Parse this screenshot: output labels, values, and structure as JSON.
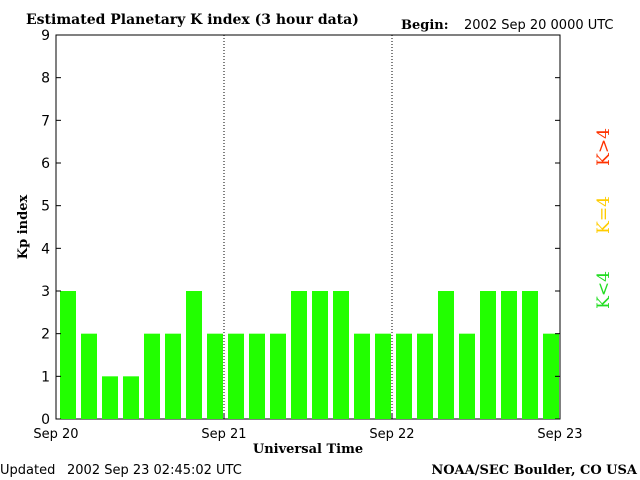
{
  "header": {
    "title": "Estimated Planetary K index (3 hour data)",
    "begin_label": "Begin:",
    "begin_value": "2002 Sep 20 0000 UTC"
  },
  "footer": {
    "updated_label": "Updated",
    "updated_value": "2002 Sep 23 02:45:02 UTC",
    "credit": "NOAA/SEC Boulder, CO USA"
  },
  "legend": [
    {
      "label": "K<4",
      "color": "#22dd22"
    },
    {
      "label": "K=4",
      "color": "#ffcc00"
    },
    {
      "label": "K>4",
      "color": "#ff3300"
    }
  ],
  "chart_data": {
    "type": "bar",
    "xlabel": "Universal Time",
    "ylabel": "Kp index",
    "ylim": [
      0,
      9
    ],
    "yticks": [
      "0",
      "1",
      "2",
      "3",
      "4",
      "5",
      "6",
      "7",
      "8",
      "9"
    ],
    "xticks": [
      "Sep 20",
      "Sep 21",
      "Sep 22",
      "Sep 23"
    ],
    "bar_color": "#22ff00",
    "values": [
      3,
      2,
      1,
      1,
      2,
      2,
      3,
      2,
      2,
      2,
      2,
      3,
      3,
      3,
      2,
      2,
      2,
      2,
      3,
      2,
      3,
      3,
      3,
      2
    ]
  }
}
